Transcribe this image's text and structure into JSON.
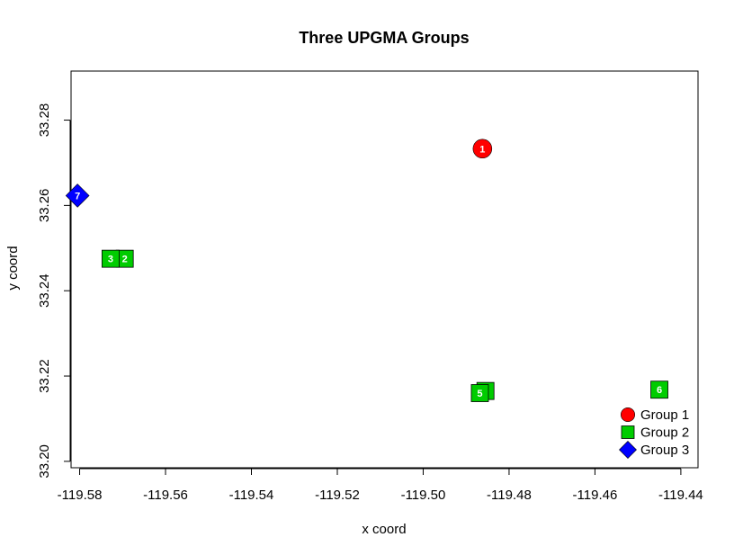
{
  "chart_data": {
    "type": "scatter",
    "title": "Three UPGMA Groups",
    "xlabel": "x coord",
    "ylabel": "y coord",
    "xlim": [
      -119.582,
      -119.436
    ],
    "ylim": [
      33.1985,
      33.2915
    ],
    "x_ticks": [
      -119.58,
      -119.56,
      -119.54,
      -119.52,
      -119.5,
      -119.48,
      -119.46,
      -119.44
    ],
    "x_tick_labels": [
      "-119.58",
      "-119.56",
      "-119.54",
      "-119.52",
      "-119.50",
      "-119.48",
      "-119.46",
      "-119.44"
    ],
    "y_ticks": [
      33.2,
      33.22,
      33.24,
      33.26,
      33.28
    ],
    "y_tick_labels": [
      "33.20",
      "33.22",
      "33.24",
      "33.26",
      "33.28"
    ],
    "grid": false,
    "legend_position": "bottom-right",
    "series": [
      {
        "name": "Group 1",
        "shape": "circle",
        "color": "#ff0000",
        "points": [
          {
            "label": "1",
            "x": -119.4862,
            "y": 33.2733
          }
        ]
      },
      {
        "name": "Group 2",
        "shape": "square",
        "color": "#00cc00",
        "points": [
          {
            "label": "2",
            "x": -119.5695,
            "y": 33.2475
          },
          {
            "label": "3",
            "x": -119.5728,
            "y": 33.2475
          },
          {
            "label": "4",
            "x": -119.4855,
            "y": 33.2165
          },
          {
            "label": "5",
            "x": -119.4868,
            "y": 33.216
          },
          {
            "label": "6",
            "x": -119.445,
            "y": 33.2168
          }
        ]
      },
      {
        "name": "Group 3",
        "shape": "diamond",
        "color": "#0000ff",
        "points": [
          {
            "label": "7",
            "x": -119.5805,
            "y": 33.2623
          }
        ]
      }
    ]
  }
}
